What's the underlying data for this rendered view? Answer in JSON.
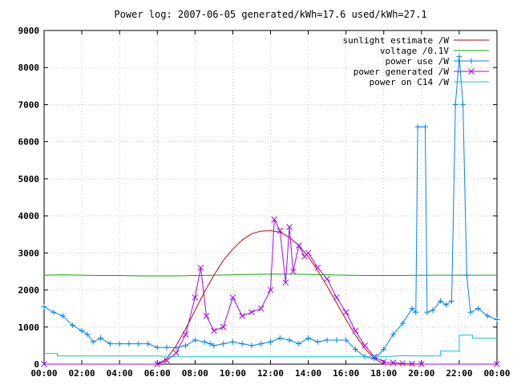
{
  "chart_data": {
    "type": "line",
    "title": "Power log: 2007-06-05 generated/kWh=17.6 used/kWh=27.1",
    "xlabel": "",
    "ylabel": "",
    "x_range_hours": [
      0,
      24
    ],
    "x_tick_labels": [
      "00:00",
      "02:00",
      "04:00",
      "06:00",
      "08:00",
      "10:00",
      "12:00",
      "14:00",
      "16:00",
      "18:00",
      "20:00",
      "22:00",
      "00:00"
    ],
    "ylim": [
      0,
      9000
    ],
    "y_ticks": [
      0,
      1000,
      2000,
      3000,
      4000,
      5000,
      6000,
      7000,
      8000,
      9000
    ],
    "grid": true,
    "legend_position": "top-right",
    "series": [
      {
        "name": "sunlight estimate /W",
        "color": "#cc0000",
        "marker": "none",
        "x": [
          0,
          6,
          6.5,
          7,
          7.5,
          8,
          8.5,
          9,
          9.5,
          10,
          10.5,
          11,
          11.5,
          12,
          12.5,
          13,
          13.5,
          14,
          14.5,
          15,
          15.5,
          16,
          16.5,
          17,
          17.5,
          18,
          24
        ],
        "y": [
          0,
          0,
          150,
          500,
          950,
          1450,
          1950,
          2400,
          2800,
          3100,
          3350,
          3520,
          3590,
          3600,
          3560,
          3420,
          3200,
          2900,
          2520,
          2100,
          1650,
          1200,
          780,
          420,
          150,
          0,
          0
        ]
      },
      {
        "name": "voltage /0.1V",
        "color": "#00aa00",
        "marker": "none",
        "x": [
          0,
          1,
          2,
          3,
          4,
          5,
          6,
          7,
          8,
          9,
          10,
          11,
          12,
          13,
          14,
          15,
          16,
          17,
          18,
          19,
          20,
          21,
          22,
          23,
          24
        ],
        "y": [
          2400,
          2410,
          2400,
          2390,
          2390,
          2380,
          2380,
          2380,
          2390,
          2400,
          2410,
          2420,
          2430,
          2430,
          2420,
          2410,
          2400,
          2390,
          2390,
          2390,
          2400,
          2400,
          2400,
          2400,
          2400
        ]
      },
      {
        "name": "power use /W",
        "color": "#0080ff",
        "marker": "plus",
        "x": [
          0,
          0.5,
          1,
          1.5,
          2,
          2.3,
          2.6,
          3,
          3.5,
          4,
          4.5,
          5,
          5.5,
          6,
          6.5,
          7,
          7.5,
          8,
          8.5,
          8.8,
          9,
          9.5,
          10,
          10.5,
          11,
          11.5,
          12,
          12.5,
          13,
          13.5,
          14,
          14.5,
          15,
          15.5,
          16,
          16.5,
          17,
          17.5,
          18,
          18.5,
          19,
          19.5,
          19.7,
          19.8,
          20.2,
          20.3,
          20.6,
          21,
          21.3,
          21.6,
          21.8,
          22,
          22.2,
          22.4,
          22.6,
          23,
          23.5,
          24
        ],
        "y": [
          1550,
          1400,
          1300,
          1050,
          900,
          800,
          600,
          700,
          550,
          550,
          550,
          550,
          550,
          450,
          450,
          450,
          500,
          650,
          600,
          550,
          500,
          550,
          600,
          550,
          500,
          550,
          600,
          700,
          650,
          550,
          700,
          600,
          650,
          650,
          650,
          400,
          200,
          150,
          400,
          800,
          1100,
          1500,
          1400,
          6400,
          6400,
          1400,
          1450,
          1700,
          1600,
          1700,
          7000,
          8300,
          7000,
          2400,
          1400,
          1500,
          1300,
          1200
        ]
      },
      {
        "name": "power generated /W",
        "color": "#aa00ff",
        "marker": "cross",
        "x": [
          0,
          6,
          6.5,
          7,
          7.5,
          8,
          8.3,
          8.6,
          9,
          9.5,
          10,
          10.5,
          11,
          11.5,
          12,
          12.2,
          12.5,
          12.8,
          13,
          13.2,
          13.5,
          13.8,
          14,
          14.5,
          15,
          15.5,
          16,
          16.5,
          17,
          17.5,
          18,
          18.5,
          19,
          19.5,
          20,
          24
        ],
        "y": [
          0,
          0,
          100,
          300,
          800,
          1800,
          2600,
          1300,
          900,
          1000,
          1800,
          1300,
          1400,
          1500,
          2000,
          3900,
          3600,
          2200,
          3700,
          2500,
          3200,
          2900,
          3000,
          2600,
          2300,
          1800,
          1400,
          900,
          500,
          200,
          60,
          40,
          20,
          10,
          0,
          0
        ]
      },
      {
        "name": "power on C14 /W",
        "color": "#00cccc",
        "marker": "none",
        "x": [
          0,
          0.7,
          0.7,
          6,
          6.5,
          7,
          18,
          19,
          20,
          21,
          21,
          22,
          22,
          22.7,
          22.7,
          24
        ],
        "y": [
          290,
          290,
          220,
          220,
          210,
          200,
          200,
          230,
          220,
          220,
          350,
          350,
          780,
          780,
          700,
          700
        ]
      }
    ]
  }
}
